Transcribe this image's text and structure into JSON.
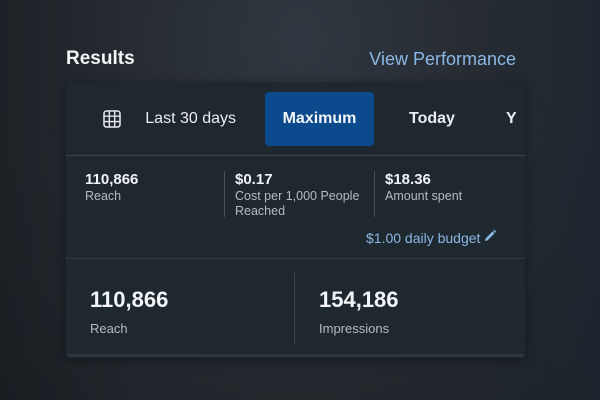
{
  "header": {
    "title": "Results",
    "view_link": "View Performance"
  },
  "tabs": {
    "calendar_icon": "calendar-grid-icon",
    "last30": "Last 30 days",
    "active": "Maximum",
    "today": "Today",
    "cut": "Y"
  },
  "stats": {
    "reach": {
      "value": "110,866",
      "label": "Reach"
    },
    "cost": {
      "value": "$0.17",
      "label_line1": "Cost per 1,000 People",
      "label_line2": "Reached"
    },
    "spent": {
      "value": "$18.36",
      "label": "Amount spent"
    }
  },
  "budget": {
    "text": "$1.00 daily budget",
    "icon": "pencil-icon"
  },
  "summary": {
    "reach": {
      "value": "110,866",
      "label": "Reach"
    },
    "impressions": {
      "value": "154,186",
      "label": "Impressions"
    }
  },
  "colors": {
    "accent_link": "#8ab8e6",
    "active_tab": "#0b4a8d",
    "card_bg": "#1f272f"
  }
}
